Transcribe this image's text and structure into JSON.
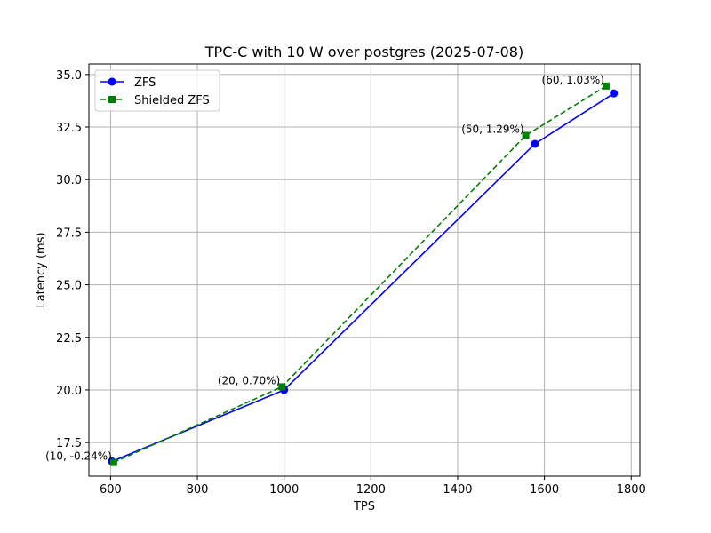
{
  "chart_data": {
    "type": "line",
    "title": "TPC-C with 10 W over postgres (2025-07-08)",
    "xlabel": "TPS",
    "ylabel": "Latency (ms)",
    "xlim": [
      550,
      1820
    ],
    "ylim": [
      15.9,
      35.5
    ],
    "xticks": [
      600,
      800,
      1000,
      1200,
      1400,
      1600,
      1800
    ],
    "yticks": [
      17.5,
      20.0,
      22.5,
      25.0,
      27.5,
      30.0,
      32.5,
      35.0
    ],
    "grid": true,
    "legend_position": "upper-left",
    "series": [
      {
        "name": "ZFS",
        "color": "#0000ff",
        "line_style": "solid",
        "marker": "circle",
        "points": [
          {
            "x": 603,
            "y": 16.6
          },
          {
            "x": 1000,
            "y": 20.0
          },
          {
            "x": 1578,
            "y": 31.7
          },
          {
            "x": 1760,
            "y": 34.1
          }
        ]
      },
      {
        "name": "Shielded ZFS",
        "color": "#008000",
        "line_style": "dashed",
        "marker": "square",
        "points": [
          {
            "x": 607,
            "y": 16.55
          },
          {
            "x": 995,
            "y": 20.15
          },
          {
            "x": 1557,
            "y": 32.1
          },
          {
            "x": 1742,
            "y": 34.45
          }
        ]
      }
    ],
    "annotations": [
      {
        "text": "(10, -0.24%)",
        "x": 607,
        "y": 16.55
      },
      {
        "text": "(20, 0.70%)",
        "x": 995,
        "y": 20.15
      },
      {
        "text": "(50, 1.29%)",
        "x": 1557,
        "y": 32.1
      },
      {
        "text": "(60, 1.03%)",
        "x": 1742,
        "y": 34.45
      }
    ]
  }
}
